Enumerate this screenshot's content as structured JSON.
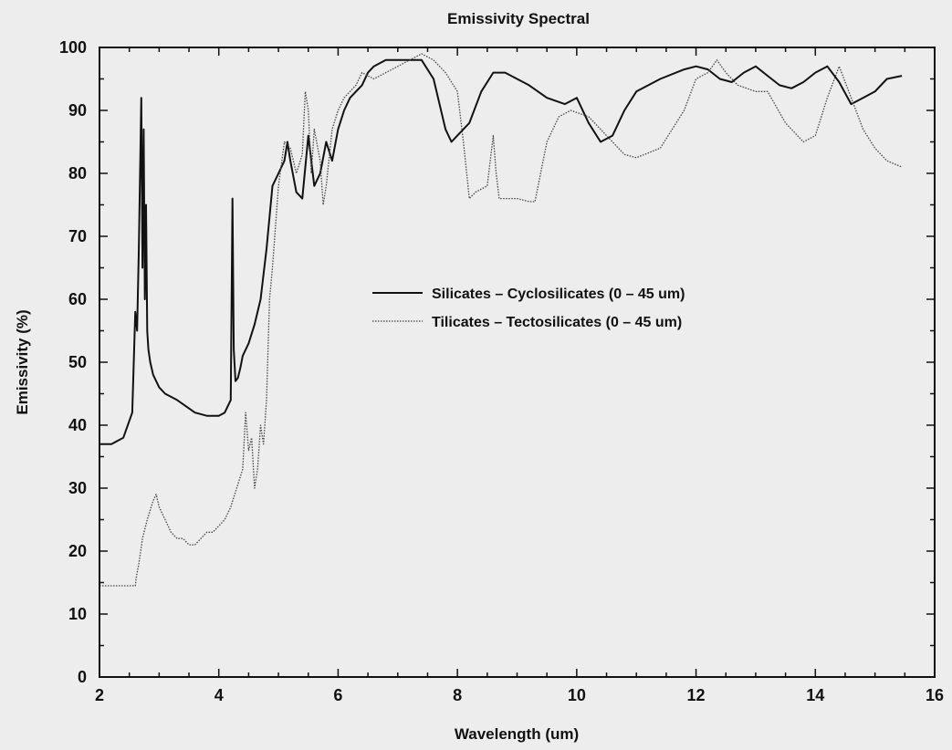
{
  "chart_data": {
    "type": "line",
    "title": "Emissivity Spectral",
    "xlabel": "Wavelength (um)",
    "ylabel": "Emissivity (%)",
    "xlim": [
      2,
      16
    ],
    "ylim": [
      0,
      100
    ],
    "xticks": [
      2,
      4,
      6,
      8,
      10,
      12,
      14,
      16
    ],
    "yticks": [
      0,
      10,
      20,
      30,
      40,
      50,
      60,
      70,
      80,
      90,
      100
    ],
    "grid": false,
    "legend_position": "center-right",
    "series": [
      {
        "name": "Silicates – Cyclosilicates (0 – 45 um)",
        "style": "solid",
        "color": "#111111",
        "x": [
          2.0,
          2.2,
          2.4,
          2.55,
          2.6,
          2.63,
          2.66,
          2.7,
          2.72,
          2.74,
          2.76,
          2.78,
          2.8,
          2.82,
          2.85,
          2.9,
          3.0,
          3.1,
          3.3,
          3.45,
          3.6,
          3.8,
          4.0,
          4.1,
          4.2,
          4.23,
          4.25,
          4.28,
          4.32,
          4.36,
          4.4,
          4.5,
          4.6,
          4.7,
          4.8,
          4.9,
          5.0,
          5.1,
          5.15,
          5.2,
          5.3,
          5.4,
          5.5,
          5.6,
          5.7,
          5.8,
          5.9,
          6.0,
          6.1,
          6.2,
          6.3,
          6.4,
          6.5,
          6.6,
          6.8,
          7.0,
          7.2,
          7.4,
          7.6,
          7.8,
          7.9,
          8.0,
          8.2,
          8.4,
          8.6,
          8.8,
          9.0,
          9.2,
          9.5,
          9.8,
          10.0,
          10.2,
          10.4,
          10.6,
          10.8,
          11.0,
          11.4,
          11.8,
          12.0,
          12.2,
          12.4,
          12.6,
          12.8,
          13.0,
          13.2,
          13.4,
          13.6,
          13.8,
          14.0,
          14.2,
          14.4,
          14.6,
          14.8,
          15.0,
          15.2,
          15.45
        ],
        "y": [
          37,
          37,
          38,
          42,
          58,
          55,
          68,
          92,
          65,
          87,
          60,
          75,
          55,
          52,
          50,
          48,
          46,
          45,
          44,
          43,
          42,
          41.5,
          41.5,
          42,
          44,
          76,
          52,
          47,
          47.5,
          49,
          51,
          53,
          56,
          60,
          68,
          78,
          80,
          82,
          85,
          82,
          77,
          76,
          86,
          78,
          80,
          85,
          82,
          87,
          90,
          92,
          93,
          94,
          96,
          97,
          98,
          98,
          98,
          98,
          95,
          87,
          85,
          86,
          88,
          93,
          96,
          96,
          95,
          94,
          92,
          91,
          92,
          88,
          85,
          86,
          90,
          93,
          95,
          96.5,
          97,
          96.5,
          95,
          94.5,
          96,
          97,
          95.5,
          94,
          93.5,
          94.5,
          96,
          97,
          94.5,
          91,
          92,
          93,
          95,
          95.5
        ]
      },
      {
        "name": "Tilicates – Tectosilicates (0 – 45 um)",
        "style": "dotted",
        "color": "#444444",
        "x": [
          2.0,
          2.3,
          2.6,
          2.62,
          2.66,
          2.72,
          2.8,
          2.9,
          2.95,
          3.0,
          3.1,
          3.2,
          3.3,
          3.4,
          3.5,
          3.6,
          3.7,
          3.8,
          3.9,
          4.0,
          4.1,
          4.2,
          4.3,
          4.4,
          4.45,
          4.5,
          4.55,
          4.6,
          4.65,
          4.7,
          4.75,
          4.8,
          4.85,
          4.9,
          5.0,
          5.1,
          5.2,
          5.3,
          5.4,
          5.45,
          5.5,
          5.55,
          5.6,
          5.7,
          5.75,
          5.8,
          5.9,
          6.0,
          6.1,
          6.2,
          6.3,
          6.4,
          6.6,
          6.8,
          7.0,
          7.2,
          7.4,
          7.6,
          7.8,
          8.0,
          8.1,
          8.2,
          8.3,
          8.5,
          8.6,
          8.65,
          8.7,
          8.8,
          9.0,
          9.2,
          9.3,
          9.5,
          9.7,
          9.9,
          10.2,
          10.5,
          10.8,
          11.0,
          11.4,
          11.8,
          12.0,
          12.2,
          12.35,
          12.5,
          12.7,
          13.0,
          13.2,
          13.5,
          13.8,
          14.0,
          14.2,
          14.4,
          14.6,
          14.8,
          15.0,
          15.2,
          15.45
        ],
        "y": [
          14.5,
          14.5,
          14.5,
          16,
          18,
          22,
          25,
          28,
          29,
          27,
          25,
          23,
          22,
          22,
          21,
          21,
          22,
          23,
          23,
          24,
          25,
          27,
          30,
          33,
          42,
          36,
          38,
          30,
          33,
          40,
          37,
          44,
          60,
          65,
          78,
          85,
          84,
          80,
          83,
          93,
          90,
          80,
          87,
          82,
          75,
          78,
          87,
          90,
          92,
          93,
          94,
          96,
          95,
          96,
          97,
          98,
          99,
          98,
          96,
          93,
          85,
          76,
          77,
          78,
          86,
          80,
          76,
          76,
          76,
          75.5,
          75.5,
          85,
          89,
          90,
          89,
          86,
          83,
          82.5,
          84,
          90,
          95,
          96,
          98,
          96,
          94,
          93,
          93,
          88,
          85,
          86,
          92,
          97,
          92,
          87,
          84,
          82,
          81
        ]
      }
    ]
  }
}
